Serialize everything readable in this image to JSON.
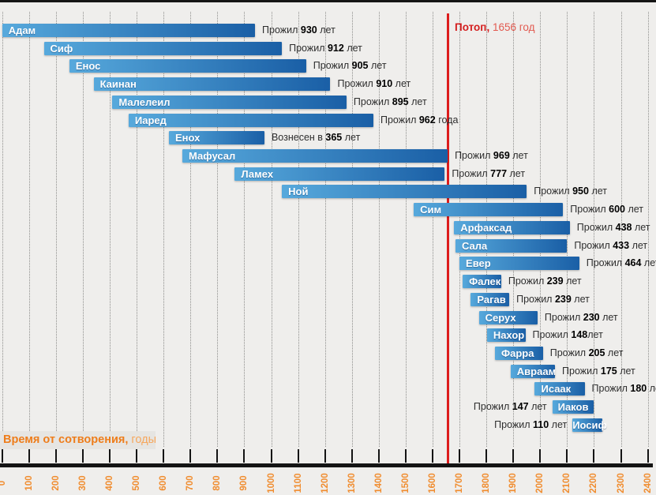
{
  "chart_data": {
    "type": "bar",
    "variant": "horizontal-timeline-gantt",
    "description": "Lifespans of biblical patriarchs from the creation of the world",
    "flood_marker": {
      "label_bold": "Потоп,",
      "label_rest": " 1656 год",
      "year": 1656,
      "color": "#d41f1f"
    },
    "x_axis": {
      "title_bold": "Время от сотворения,",
      "title_rest": " годы",
      "min": 0,
      "max": 2400,
      "step": 100,
      "ticks": [
        0,
        100,
        200,
        300,
        400,
        500,
        600,
        700,
        800,
        900,
        1000,
        1100,
        1200,
        1300,
        1400,
        1500,
        1600,
        1700,
        1800,
        1900,
        2000,
        2100,
        2200,
        2300,
        2400
      ],
      "tick_color": "#f08c2e"
    },
    "colors": {
      "bar_gradient_start": "#57a9dc",
      "bar_gradient_end": "#1a5fa6",
      "background": "#efeeec",
      "grid": "#8e8e8c",
      "flood_line": "#dd1c1c"
    },
    "rows": [
      {
        "name": "Адам",
        "start": 0,
        "end": 940,
        "lived": 930,
        "label_prefix": "Прожил ",
        "label_value": "930",
        "label_suffix": " лет",
        "label_side": "right"
      },
      {
        "name": "Сиф",
        "start": 155,
        "end": 1040,
        "lived": 912,
        "label_prefix": "Прожил ",
        "label_value": "912",
        "label_suffix": " лет",
        "label_side": "right"
      },
      {
        "name": "Енос",
        "start": 250,
        "end": 1130,
        "lived": 905,
        "label_prefix": "Прожил ",
        "label_value": "905",
        "label_suffix": " лет",
        "label_side": "right"
      },
      {
        "name": "Каинан",
        "start": 340,
        "end": 1220,
        "lived": 910,
        "label_prefix": "Прожил ",
        "label_value": "910",
        "label_suffix": " лет",
        "label_side": "right"
      },
      {
        "name": "Малелеил",
        "start": 410,
        "end": 1280,
        "lived": 895,
        "label_prefix": "Прожил ",
        "label_value": "895",
        "label_suffix": " лет",
        "label_side": "right"
      },
      {
        "name": "Иаред",
        "start": 470,
        "end": 1380,
        "lived": 962,
        "label_prefix": "Прожил ",
        "label_value": "962",
        "label_suffix": " года",
        "label_side": "right"
      },
      {
        "name": "Енох",
        "start": 620,
        "end": 975,
        "lived": 365,
        "label_prefix": "Вознесен в ",
        "label_value": "365",
        "label_suffix": " лет",
        "label_side": "right"
      },
      {
        "name": "Мафусал",
        "start": 670,
        "end": 1656,
        "lived": 969,
        "label_prefix": "Прожил ",
        "label_value": "969",
        "label_suffix": " лет",
        "label_side": "right"
      },
      {
        "name": "Ламех",
        "start": 865,
        "end": 1645,
        "lived": 777,
        "label_prefix": "Прожил ",
        "label_value": "777",
        "label_suffix": " лет",
        "label_side": "right"
      },
      {
        "name": "Ной",
        "start": 1040,
        "end": 1950,
        "lived": 950,
        "label_prefix": "Прожил ",
        "label_value": "950",
        "label_suffix": " лет",
        "label_side": "right"
      },
      {
        "name": "Сим",
        "start": 1530,
        "end": 2085,
        "lived": 600,
        "label_prefix": "Прожил ",
        "label_value": "600",
        "label_suffix": " лет",
        "label_side": "right"
      },
      {
        "name": "Арфаксад",
        "start": 1680,
        "end": 2110,
        "lived": 438,
        "label_prefix": "Прожил ",
        "label_value": "438",
        "label_suffix": " лет",
        "label_side": "right"
      },
      {
        "name": "Сала",
        "start": 1685,
        "end": 2100,
        "lived": 433,
        "label_prefix": "Прожил ",
        "label_value": "433",
        "label_suffix": " лет",
        "label_side": "right"
      },
      {
        "name": "Евер",
        "start": 1700,
        "end": 2145,
        "lived": 464,
        "label_prefix": "Прожил ",
        "label_value": "464",
        "label_suffix": " лет",
        "label_side": "right"
      },
      {
        "name": "Фалек",
        "start": 1712,
        "end": 1855,
        "lived": 239,
        "label_prefix": "Прожил ",
        "label_value": "239",
        "label_suffix": " лет",
        "label_side": "right"
      },
      {
        "name": "Рагав",
        "start": 1742,
        "end": 1885,
        "lived": 239,
        "label_prefix": "Прожил ",
        "label_value": "239",
        "label_suffix": " лет",
        "label_side": "right"
      },
      {
        "name": "Серух",
        "start": 1772,
        "end": 1990,
        "lived": 230,
        "label_prefix": "Прожил ",
        "label_value": "230",
        "label_suffix": " лет",
        "label_side": "right"
      },
      {
        "name": "Нахор",
        "start": 1802,
        "end": 1945,
        "lived": 148,
        "label_prefix": "Прожил ",
        "label_value": "148",
        "label_suffix": "лет",
        "label_side": "right"
      },
      {
        "name": "Фарра",
        "start": 1832,
        "end": 2010,
        "lived": 205,
        "label_prefix": "Прожил ",
        "label_value": "205",
        "label_suffix": " лет",
        "label_side": "right"
      },
      {
        "name": "Авраам",
        "start": 1890,
        "end": 2055,
        "lived": 175,
        "label_prefix": "Прожил ",
        "label_value": "175",
        "label_suffix": " лет",
        "label_side": "right"
      },
      {
        "name": "Исаак",
        "start": 1980,
        "end": 2165,
        "lived": 180,
        "label_prefix": "Прожил ",
        "label_value": "180",
        "label_suffix": " лет",
        "label_side": "right"
      },
      {
        "name": "Иаков",
        "start": 2045,
        "end": 2200,
        "lived": 147,
        "label_prefix": "Прожил ",
        "label_value": "147",
        "label_suffix": " лет",
        "label_side": "left"
      },
      {
        "name": "Иосиф",
        "start": 2120,
        "end": 2230,
        "lived": 110,
        "label_prefix": "Прожил ",
        "label_value": "110",
        "label_suffix": " лет",
        "label_side": "left"
      }
    ]
  }
}
